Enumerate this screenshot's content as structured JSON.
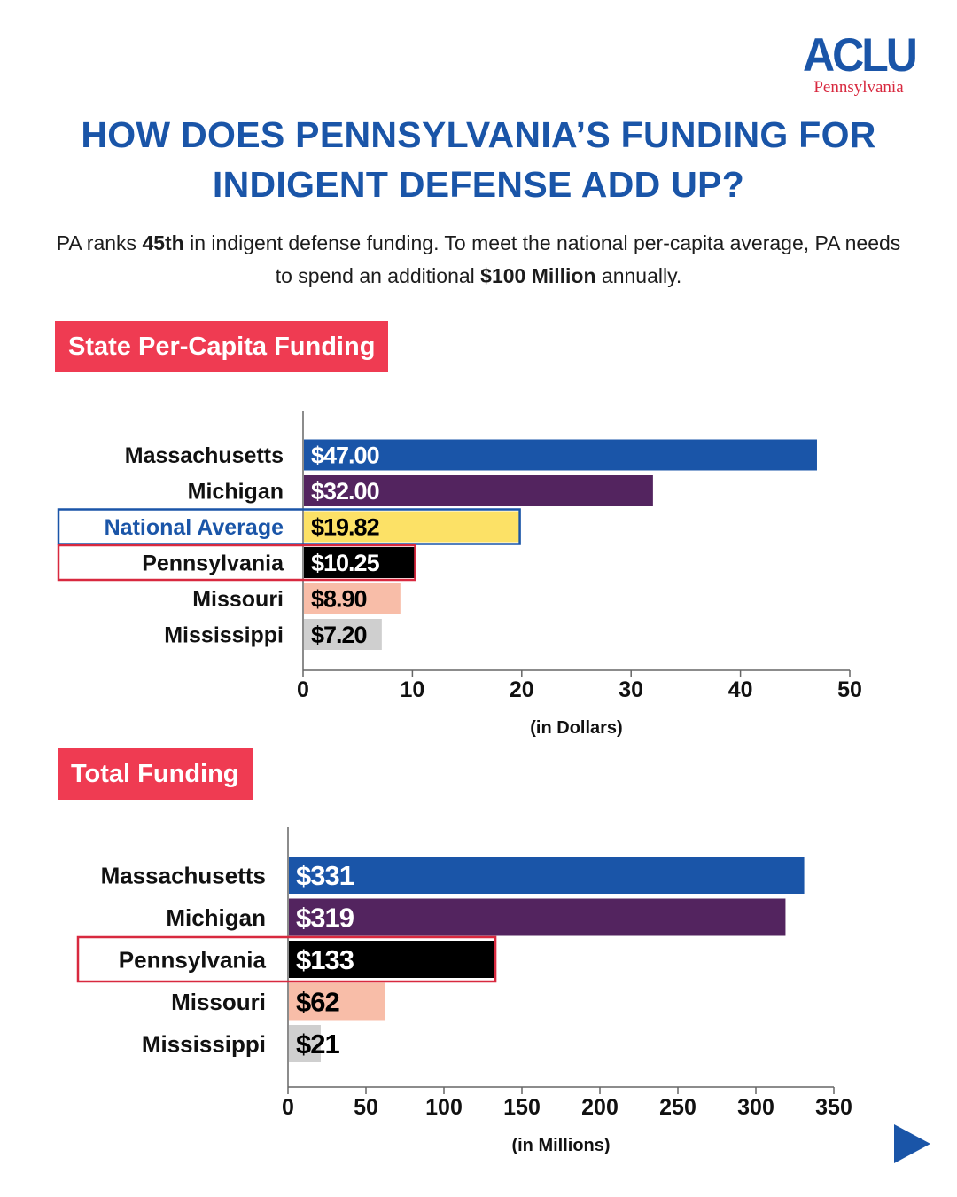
{
  "logo": {
    "mark": "ACLU",
    "sub": "Pennsylvania"
  },
  "title": "HOW DOES PENNSYLVANIA’S FUNDING FOR INDIGENT DEFENSE ADD UP?",
  "subtitle": {
    "p1": "PA ranks ",
    "rank": "45th",
    "p2": " in indigent defense funding. To meet the national per-capita average, PA needs to spend an additional ",
    "amount": "$100 Million",
    "p3": " annually."
  },
  "colors": {
    "brand_blue": "#1a55a8",
    "brand_red": "#ef3b52",
    "bar_massachusetts": "#1a55a8",
    "bar_michigan": "#53245f",
    "bar_national_average": "#fce166",
    "bar_pennsylvania": "#000000",
    "bar_missouri": "#f8bda8",
    "bar_mississippi": "#cfcfcf"
  },
  "next_icon": "play-right-arrow-icon",
  "chart_data": [
    {
      "type": "bar",
      "orientation": "horizontal",
      "title": "State Per-Capita Funding",
      "xlabel": "(in Dollars)",
      "xlim": [
        0,
        50
      ],
      "xticks": [
        0,
        10,
        20,
        30,
        40,
        50
      ],
      "grid": false,
      "categories": [
        "Massachusetts",
        "Michigan",
        "National Average",
        "Pennsylvania",
        "Missouri",
        "Mississippi"
      ],
      "values": [
        47.0,
        32.0,
        19.82,
        10.25,
        8.9,
        7.2
      ],
      "value_labels": [
        "$47.00",
        "$32.00",
        "$19.82",
        "$10.25",
        "$8.90",
        "$7.20"
      ],
      "colors": [
        "#1a55a8",
        "#53245f",
        "#fce166",
        "#000000",
        "#f8bda8",
        "#cfcfcf"
      ],
      "label_colors": [
        "#ffffff",
        "#ffffff",
        "#000000",
        "#ffffff",
        "#000000",
        "#000000"
      ],
      "highlights": [
        "",
        "",
        "blue-outline",
        "red-outline",
        "",
        ""
      ]
    },
    {
      "type": "bar",
      "orientation": "horizontal",
      "title": "Total Funding",
      "xlabel": "(in Millions)",
      "xlim": [
        0,
        350
      ],
      "xticks": [
        0,
        50,
        100,
        150,
        200,
        250,
        300,
        350
      ],
      "grid": false,
      "categories": [
        "Massachusetts",
        "Michigan",
        "Pennsylvania",
        "Missouri",
        "Mississippi"
      ],
      "values": [
        331,
        319,
        133,
        62,
        21
      ],
      "value_labels": [
        "$331",
        "$319",
        "$133",
        "$62",
        "$21"
      ],
      "colors": [
        "#1a55a8",
        "#53245f",
        "#000000",
        "#f8bda8",
        "#cfcfcf"
      ],
      "label_colors": [
        "#ffffff",
        "#ffffff",
        "#ffffff",
        "#000000",
        "#000000"
      ],
      "highlights": [
        "",
        "",
        "red-outline",
        "",
        ""
      ]
    }
  ]
}
